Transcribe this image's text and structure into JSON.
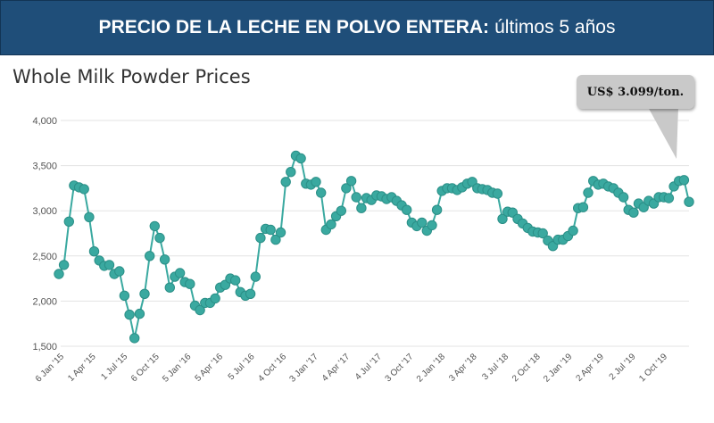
{
  "banner": {
    "title_bold": "PRECIO DE LA LECHE EN POLVO ENTERA:",
    "title_rest": "últimos 5 años",
    "background": "#1f4e79"
  },
  "chart_data": {
    "type": "line",
    "title": "Whole Milk Powder Prices",
    "xlabel": "",
    "ylabel": "",
    "ylim": [
      1500,
      4000
    ],
    "yticks": [
      1500,
      2000,
      2500,
      3000,
      3500,
      4000
    ],
    "ytick_labels": [
      "1,500",
      "2,000",
      "2,500",
      "3,000",
      "3,500",
      "4,000"
    ],
    "xtick_labels": [
      "6 Jan '15",
      "1 Apr '15",
      "1 Jul '15",
      "6 Oct '15",
      "5 Jan '16",
      "5 Apr '16",
      "5 Jul '16",
      "4 Oct '16",
      "3 Jan '17",
      "4 Apr '17",
      "4 Jul '17",
      "3 Oct '17",
      "2 Jan '18",
      "3 Apr '18",
      "3 Jul '18",
      "2 Oct '18",
      "2 Jan '19",
      "2 Apr '19",
      "2 Jul '19",
      "1 Oct '19"
    ],
    "color": "#3aa9a0",
    "grid": true,
    "series": [
      {
        "name": "Whole Milk Powder",
        "values": [
          2300,
          2400,
          2880,
          3280,
          3260,
          3240,
          2930,
          2550,
          2450,
          2390,
          2400,
          2300,
          2330,
          2060,
          1850,
          1590,
          1860,
          2080,
          2500,
          2830,
          2700,
          2460,
          2150,
          2270,
          2310,
          2210,
          2190,
          1950,
          1900,
          1980,
          1980,
          2030,
          2150,
          2180,
          2250,
          2230,
          2100,
          2060,
          2080,
          2270,
          2700,
          2800,
          2790,
          2680,
          2760,
          3320,
          3430,
          3610,
          3580,
          3300,
          3290,
          3320,
          3200,
          2790,
          2850,
          2940,
          3000,
          3250,
          3330,
          3150,
          3030,
          3140,
          3120,
          3170,
          3160,
          3130,
          3150,
          3110,
          3060,
          3010,
          2870,
          2830,
          2870,
          2780,
          2840,
          3010,
          3220,
          3250,
          3250,
          3230,
          3260,
          3300,
          3320,
          3250,
          3240,
          3230,
          3200,
          3190,
          2910,
          2990,
          2980,
          2910,
          2860,
          2810,
          2770,
          2760,
          2750,
          2670,
          2610,
          2680,
          2680,
          2720,
          2780,
          3030,
          3040,
          3200,
          3330,
          3290,
          3300,
          3270,
          3250,
          3200,
          3150,
          3010,
          2980,
          3080,
          3040,
          3110,
          3080,
          3150,
          3150,
          3140,
          3270,
          3330,
          3340,
          3099
        ]
      }
    ],
    "annotation": "US$ 3.099/ton."
  }
}
